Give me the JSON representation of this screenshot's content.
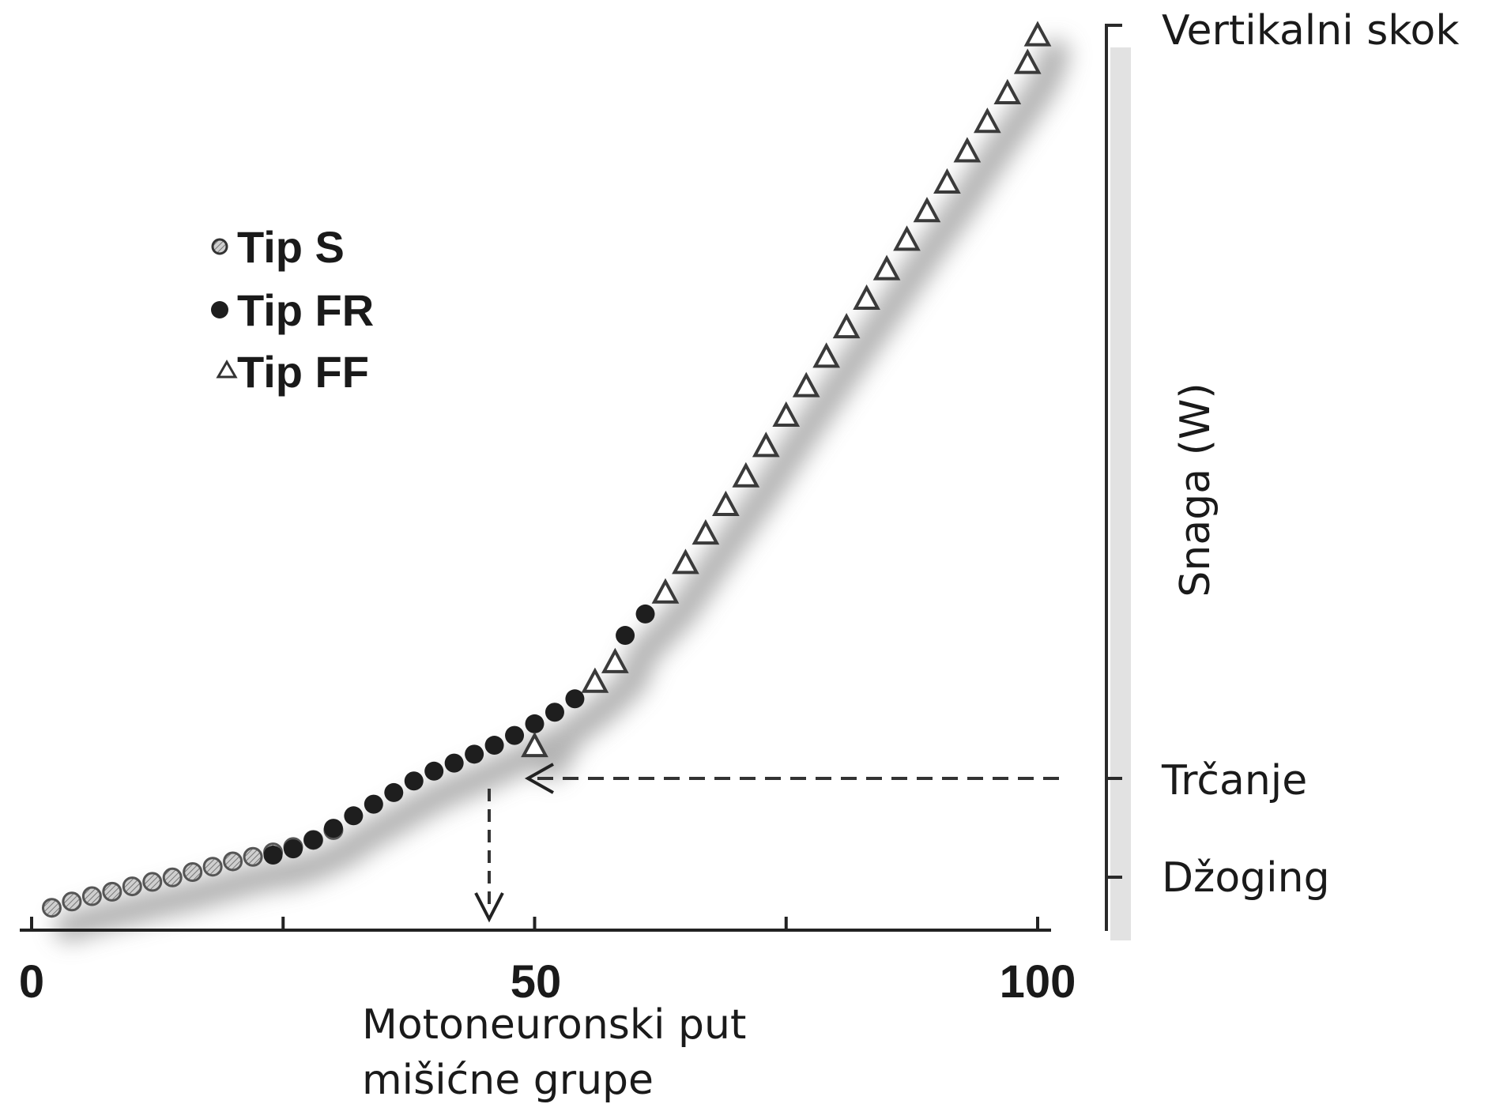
{
  "chart_data": {
    "type": "scatter",
    "title": "",
    "xlabel_lines": [
      "Motoneuronski put",
      "mišićne grupe"
    ],
    "ylabel": "Snaga (W)",
    "xlim": [
      0,
      100
    ],
    "ylim": [
      0,
      100
    ],
    "x_ticks": [
      0,
      25,
      50,
      75,
      100
    ],
    "x_tick_labels": [
      "0",
      "50",
      "100"
    ],
    "grid": false,
    "legend_position": "top-left",
    "legend": [
      {
        "name": "Tip S",
        "marker": "hatched-circle"
      },
      {
        "name": "Tip FR",
        "marker": "filled-circle"
      },
      {
        "name": "Tip FF",
        "marker": "open-triangle"
      }
    ],
    "series": [
      {
        "name": "Tip S",
        "marker": "hatched-circle",
        "color": "#8c8c8c",
        "points": [
          [
            2,
            1
          ],
          [
            4,
            1.7
          ],
          [
            6,
            2.3
          ],
          [
            8,
            2.8
          ],
          [
            10,
            3.4
          ],
          [
            12,
            3.9
          ],
          [
            14,
            4.4
          ],
          [
            16,
            5
          ],
          [
            18,
            5.6
          ],
          [
            20,
            6.2
          ],
          [
            22,
            6.7
          ],
          [
            24,
            7.2
          ],
          [
            26,
            7.8
          ],
          [
            28,
            8.6
          ],
          [
            30,
            9.7
          ]
        ]
      },
      {
        "name": "Tip FR",
        "marker": "filled-circle",
        "color": "#1e1e1e",
        "points": [
          [
            24,
            6.9
          ],
          [
            26,
            7.6
          ],
          [
            28,
            8.6
          ],
          [
            30,
            9.9
          ],
          [
            32,
            11.3
          ],
          [
            34,
            12.6
          ],
          [
            36,
            13.9
          ],
          [
            38,
            15.2
          ],
          [
            40,
            16.3
          ],
          [
            42,
            17.2
          ],
          [
            44,
            18.2
          ],
          [
            46,
            19.2
          ],
          [
            48,
            20.3
          ],
          [
            50,
            21.6
          ],
          [
            52,
            22.9
          ],
          [
            54,
            24.4
          ],
          [
            59,
            31.5
          ],
          [
            61,
            33.9
          ]
        ]
      },
      {
        "name": "Tip FF",
        "marker": "open-triangle",
        "color": "#3a3a3a",
        "points": [
          [
            50,
            19.1
          ],
          [
            56,
            26.3
          ],
          [
            58,
            28.5
          ],
          [
            63,
            36.3
          ],
          [
            65,
            39.6
          ],
          [
            67,
            42.9
          ],
          [
            69,
            46.1
          ],
          [
            71,
            49.3
          ],
          [
            73,
            52.7
          ],
          [
            75,
            56.1
          ],
          [
            77,
            59.4
          ],
          [
            79,
            62.7
          ],
          [
            81,
            66
          ],
          [
            83,
            69.2
          ],
          [
            85,
            72.5
          ],
          [
            87,
            75.8
          ],
          [
            89,
            79
          ],
          [
            91,
            82.2
          ],
          [
            93,
            85.7
          ],
          [
            95,
            89
          ],
          [
            97,
            92.2
          ],
          [
            99,
            95.6
          ],
          [
            100,
            98.7
          ]
        ]
      }
    ],
    "right_axis_labels": [
      {
        "label": "Vertikalni skok",
        "level": 99
      },
      {
        "label": "Trčanje",
        "level": 16.7
      },
      {
        "label": "Džoging",
        "level": 5.3
      }
    ],
    "reference_lines": [
      {
        "from_label": "Trčanje",
        "y": 16.7,
        "x_at_curve": 51,
        "x_drop": 46,
        "style": "dashed-arrows"
      }
    ]
  }
}
